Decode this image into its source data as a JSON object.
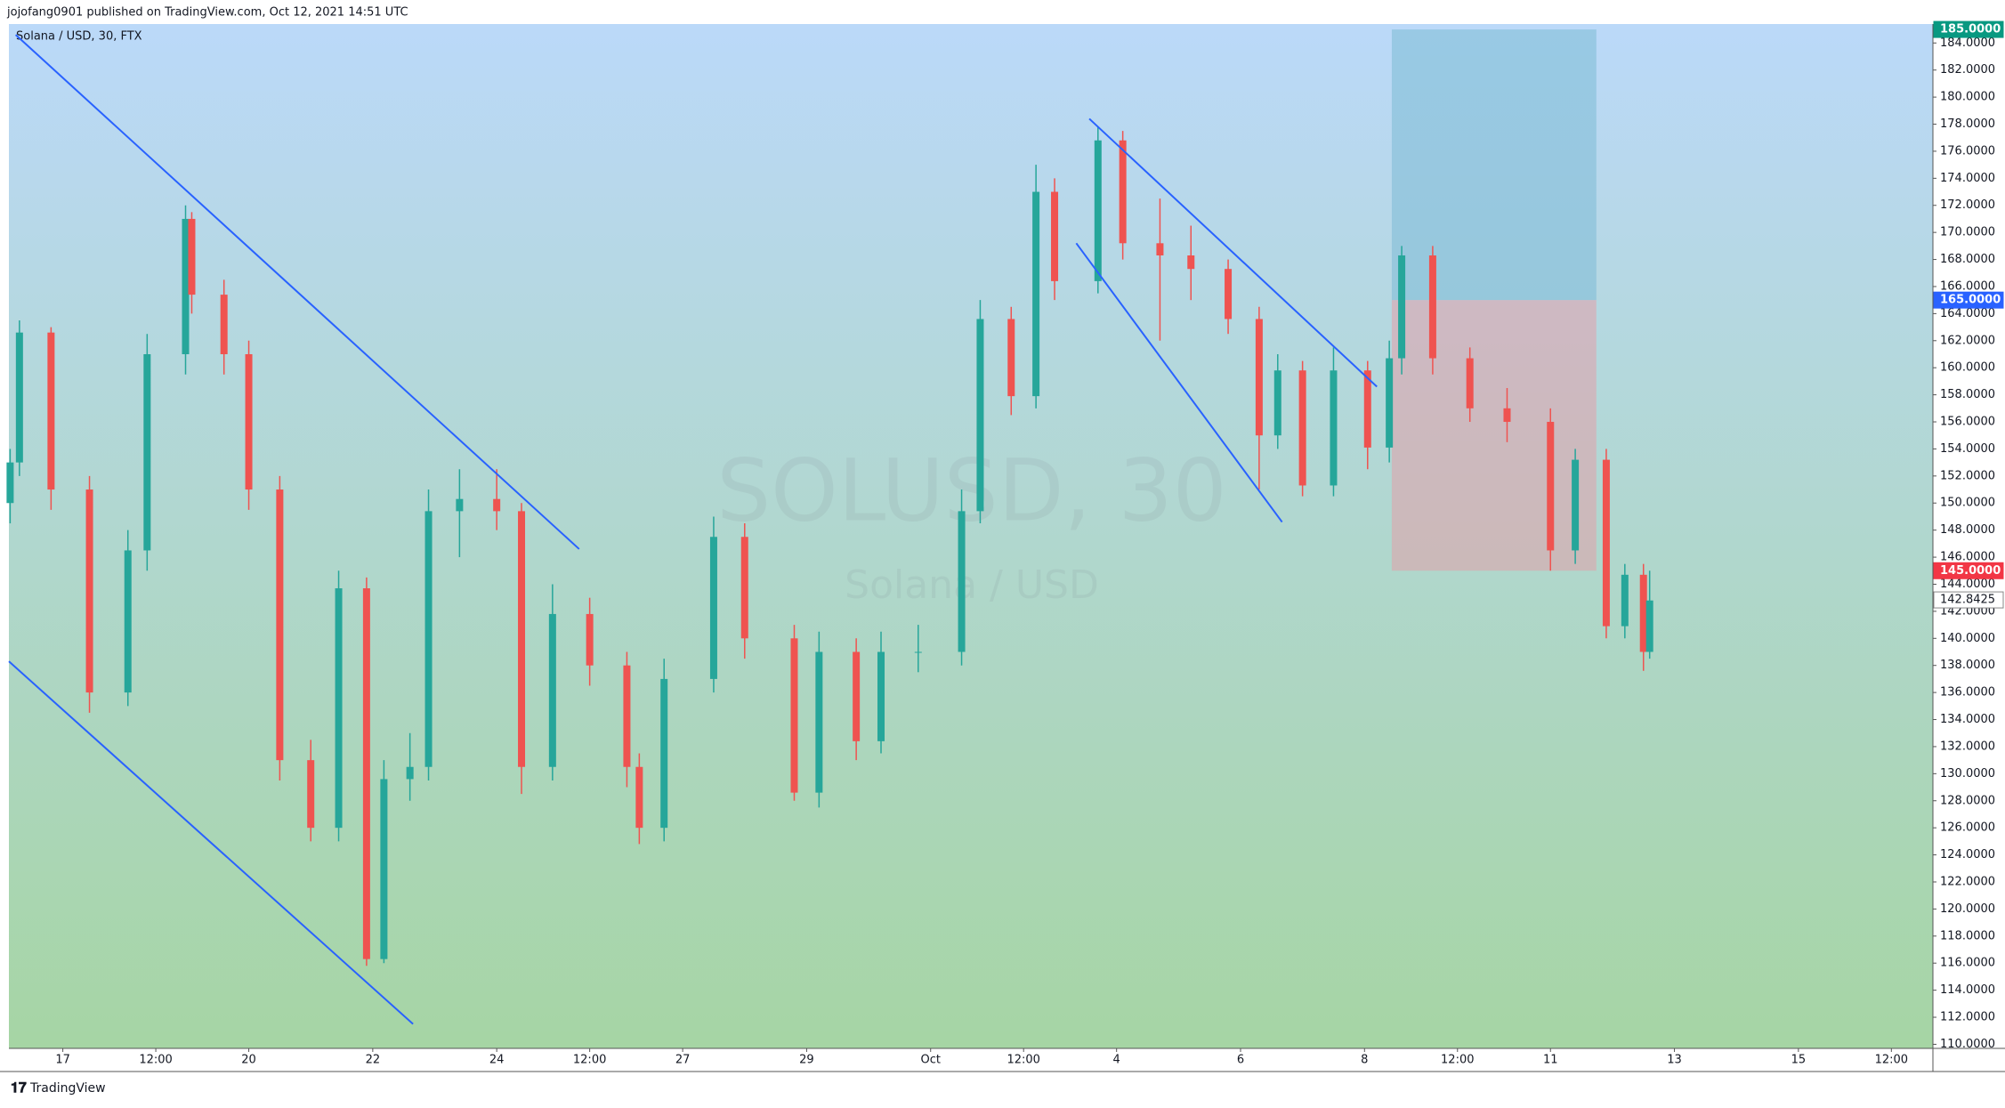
{
  "header": "jojofang0901 published on TradingView.com, Oct 12, 2021 14:51 UTC",
  "footer": "TradingView",
  "chart_data": {
    "type": "candlestick",
    "symbol": "Solana / USD, 30, FTX",
    "watermark": [
      "SOLUSD, 30",
      "Solana / USD"
    ],
    "up_color": "#26a69a",
    "down_color": "#ef5350",
    "line_color": "#2962ff",
    "grid": false,
    "xlim": [
      -0.87,
      30.17
    ],
    "ylim": [
      109.7,
      185.4
    ],
    "xticks": [
      {
        "value": 0,
        "label": "17"
      },
      {
        "value": 1.5,
        "label": "12:00"
      },
      {
        "value": 3,
        "label": "20"
      },
      {
        "value": 5,
        "label": "22"
      },
      {
        "value": 7,
        "label": "24"
      },
      {
        "value": 8.5,
        "label": "12:00"
      },
      {
        "value": 10,
        "label": "27"
      },
      {
        "value": 12,
        "label": "29"
      },
      {
        "value": 14,
        "label": "Oct"
      },
      {
        "value": 15.5,
        "label": "12:00"
      },
      {
        "value": 17,
        "label": "4"
      },
      {
        "value": 19,
        "label": "6"
      },
      {
        "value": 21,
        "label": "8"
      },
      {
        "value": 22.5,
        "label": "12:00"
      },
      {
        "value": 24,
        "label": "11"
      },
      {
        "value": 26,
        "label": "13"
      },
      {
        "value": 28,
        "label": "15"
      },
      {
        "value": 29.5,
        "label": "12:00"
      }
    ],
    "yticks": [
      {
        "value": 110,
        "label": "110.0000"
      },
      {
        "value": 112,
        "label": "112.0000"
      },
      {
        "value": 114,
        "label": "114.0000"
      },
      {
        "value": 116,
        "label": "116.0000"
      },
      {
        "value": 118,
        "label": "118.0000"
      },
      {
        "value": 120,
        "label": "120.0000"
      },
      {
        "value": 122,
        "label": "122.0000"
      },
      {
        "value": 124,
        "label": "124.0000"
      },
      {
        "value": 126,
        "label": "126.0000"
      },
      {
        "value": 128,
        "label": "128.0000"
      },
      {
        "value": 130,
        "label": "130.0000"
      },
      {
        "value": 132,
        "label": "132.0000"
      },
      {
        "value": 134,
        "label": "134.0000"
      },
      {
        "value": 136,
        "label": "136.0000"
      },
      {
        "value": 138,
        "label": "138.0000"
      },
      {
        "value": 140,
        "label": "140.0000"
      },
      {
        "value": 142,
        "label": "142.0000"
      },
      {
        "value": 144,
        "label": "144.0000"
      },
      {
        "value": 146,
        "label": "146.0000"
      },
      {
        "value": 148,
        "label": "148.0000"
      },
      {
        "value": 150,
        "label": "150.0000"
      },
      {
        "value": 152,
        "label": "152.0000"
      },
      {
        "value": 154,
        "label": "154.0000"
      },
      {
        "value": 156,
        "label": "156.0000"
      },
      {
        "value": 158,
        "label": "158.0000"
      },
      {
        "value": 160,
        "label": "160.0000"
      },
      {
        "value": 162,
        "label": "162.0000"
      },
      {
        "value": 164,
        "label": "164.0000"
      },
      {
        "value": 166,
        "label": "166.0000"
      },
      {
        "value": 168,
        "label": "168.0000"
      },
      {
        "value": 170,
        "label": "170.0000"
      },
      {
        "value": 172,
        "label": "172.0000"
      },
      {
        "value": 174,
        "label": "174.0000"
      },
      {
        "value": 176,
        "label": "176.0000"
      },
      {
        "value": 178,
        "label": "178.0000"
      },
      {
        "value": 180,
        "label": "180.0000"
      },
      {
        "value": 182,
        "label": "182.0000"
      },
      {
        "value": 184,
        "label": "184.0000"
      }
    ],
    "x": [
      -0.85,
      -0.7,
      -0.19,
      0.43,
      1.05,
      1.36,
      1.98,
      2.08,
      2.6,
      3.0,
      3.5,
      4.0,
      4.45,
      4.9,
      5.18,
      5.6,
      5.9,
      6.4,
      7.0,
      7.4,
      7.9,
      8.5,
      9.1,
      9.3,
      9.7,
      10.5,
      11.0,
      11.8,
      12.2,
      12.8,
      13.2,
      13.8,
      14.5,
      14.8,
      15.3,
      15.7,
      16.0,
      16.7,
      17.1,
      17.7,
      18.2,
      18.8,
      19.3,
      19.6,
      20.0,
      20.5,
      21.05,
      21.4,
      21.6,
      22.1,
      22.7,
      23.3,
      24.0,
      24.4,
      24.9,
      25.2,
      25.5,
      25.6
    ],
    "open": [
      150,
      153,
      162.6,
      151,
      136,
      146.5,
      161,
      171,
      165.4,
      161,
      151,
      131,
      126,
      143.7,
      116.3,
      129.6,
      130.5,
      149.4,
      150.3,
      149.4,
      130.5,
      141.8,
      138,
      130.5,
      126,
      137,
      147.5,
      140,
      128.6,
      139,
      132.4,
      139,
      139,
      149.4,
      163.6,
      157.9,
      173,
      166.4,
      176.8,
      169.2,
      168.3,
      167.3,
      163.6,
      155,
      159.8,
      151.3,
      159.8,
      154.1,
      160.7,
      168.3,
      160.7,
      157,
      156,
      146.5,
      153.2,
      140.9,
      144.7,
      139
    ],
    "high": [
      154,
      163.5,
      163,
      152,
      148,
      162.5,
      172,
      171.5,
      166.5,
      162,
      152,
      132.5,
      145,
      144.5,
      131,
      133,
      151,
      152.5,
      152.5,
      150,
      144,
      143,
      139,
      131.5,
      138.5,
      149,
      148.5,
      141,
      140.5,
      140,
      140.5,
      141,
      151,
      165,
      164.5,
      175,
      174,
      177.8,
      177.5,
      172.5,
      170.5,
      168,
      164.5,
      161,
      160.5,
      161.5,
      160.5,
      162,
      169,
      169,
      161.5,
      158.5,
      157,
      154,
      154,
      145.5,
      145.5,
      145
    ],
    "low": [
      148.5,
      152,
      149.5,
      134.5,
      135,
      145,
      159.5,
      164,
      159.5,
      149.5,
      129.5,
      125,
      125,
      115.8,
      116,
      128,
      129.5,
      146,
      148,
      128.5,
      129.5,
      136.5,
      129,
      124.8,
      125,
      136,
      138.5,
      128,
      127.5,
      131,
      131.5,
      137.5,
      138,
      148.5,
      156.5,
      157,
      165,
      165.5,
      168,
      162,
      165,
      162.5,
      151,
      154,
      150.5,
      150.5,
      152.5,
      153,
      159.5,
      159.5,
      156,
      154.5,
      145,
      145.5,
      140,
      140,
      137.6,
      138.5
    ],
    "close": [
      153,
      162.6,
      151,
      136,
      146.5,
      161,
      171,
      165.4,
      161,
      151,
      131,
      126,
      143.7,
      116.3,
      129.6,
      130.5,
      149.4,
      150.3,
      149.4,
      130.5,
      141.8,
      138,
      130.5,
      126,
      137,
      147.5,
      140,
      128.6,
      139,
      132.4,
      139,
      139,
      149.4,
      163.6,
      157.9,
      173,
      166.4,
      176.8,
      169.2,
      168.3,
      167.3,
      163.6,
      155,
      159.8,
      151.3,
      159.8,
      154.1,
      160.7,
      168.3,
      160.7,
      157,
      156,
      146.5,
      153.2,
      140.9,
      144.7,
      139,
      142.8
    ],
    "lines": [
      {
        "x": [
          -0.76,
          8.33
        ],
        "y": [
          184.6,
          146.6
        ]
      },
      {
        "x": [
          -0.87,
          5.65
        ],
        "y": [
          138.3,
          111.5
        ]
      },
      {
        "x": [
          16.56,
          21.2
        ],
        "y": [
          178.4,
          158.6
        ]
      },
      {
        "x": [
          16.35,
          19.67
        ],
        "y": [
          169.2,
          148.6
        ]
      }
    ],
    "position": {
      "x": [
        21.44,
        24.74
      ],
      "target_color": "#089981",
      "entry_color": "#2962ff",
      "stop_color": "#f23645",
      "target": {
        "value": 185,
        "label": "185.0000"
      },
      "entry": {
        "value": 165,
        "label": "165.0000"
      },
      "stop": {
        "value": 145,
        "label": "145.0000"
      }
    },
    "last": {
      "value": 142.8425,
      "label": "142.8425"
    }
  }
}
